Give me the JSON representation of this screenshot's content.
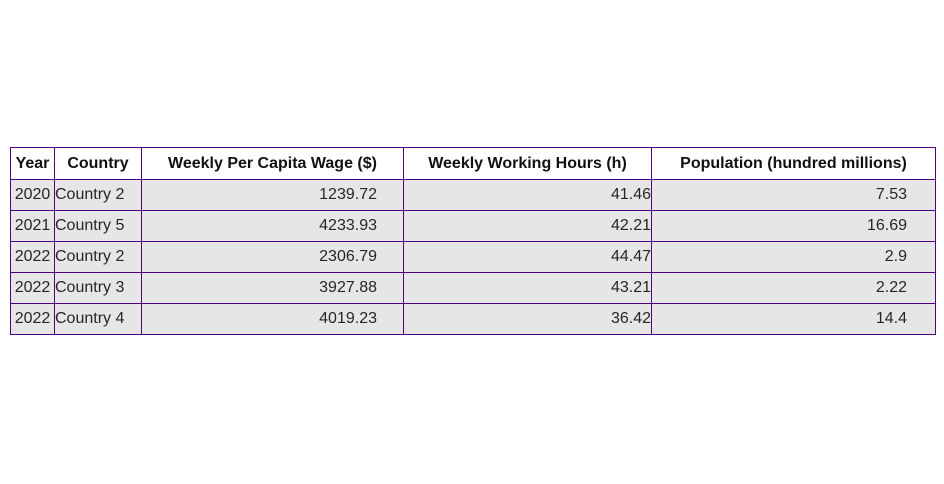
{
  "chart_data": {
    "type": "table",
    "columns": [
      "Year",
      "Country",
      "Weekly Per Capita Wage ($)",
      "Weekly Working Hours (h)",
      "Population (hundred millions)"
    ],
    "rows": [
      [
        "2020",
        "Country 2",
        "1239.72",
        "41.46",
        "7.53"
      ],
      [
        "2021",
        "Country 5",
        "4233.93",
        "42.21",
        "16.69"
      ],
      [
        "2022",
        "Country 2",
        "2306.79",
        "44.47",
        "2.9"
      ],
      [
        "2022",
        "Country 3",
        "3927.88",
        "43.21",
        "2.22"
      ],
      [
        "2022",
        "Country 4",
        "4019.23",
        "36.42",
        "14.4"
      ]
    ],
    "colors": {
      "border": "#4b0082",
      "header_background": "#ffffff",
      "cell_background": "#e6e6e6"
    }
  }
}
